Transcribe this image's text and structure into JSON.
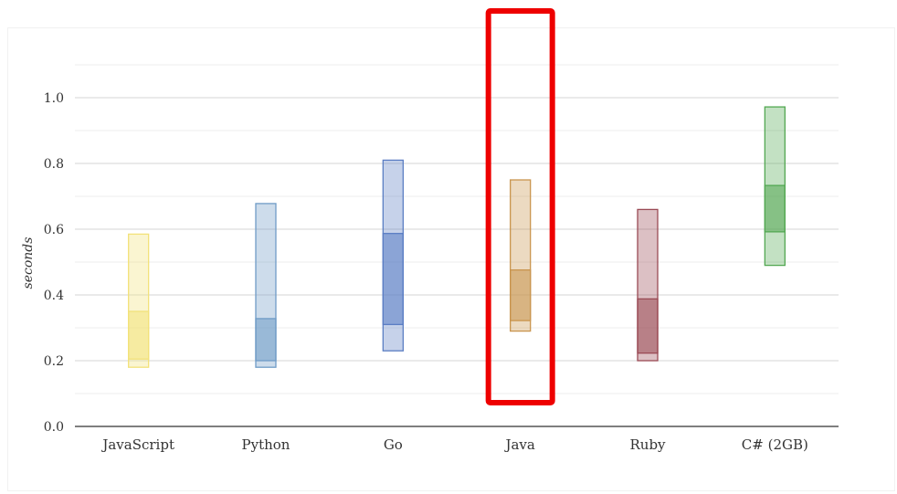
{
  "chart_data": {
    "type": "range-bar",
    "ylabel": "seconds",
    "ylim": [
      0,
      1.2
    ],
    "yticks": [
      0.0,
      0.2,
      0.4,
      0.6,
      0.8,
      1.0
    ],
    "yticks_text": [
      "0.0",
      "0.2",
      "0.4",
      "0.6",
      "0.8",
      "1.0"
    ],
    "grid": true,
    "categories": [
      "JavaScript",
      "Python",
      "Go",
      "Java",
      "Ruby",
      "C# (2GB)"
    ],
    "series": [
      {
        "category": "JavaScript",
        "min": 0.18,
        "q1": 0.205,
        "median": 0.35,
        "max": 0.585,
        "color": "#f2e27a"
      },
      {
        "category": "Python",
        "min": 0.18,
        "q1": 0.2,
        "median": 0.328,
        "max": 0.678,
        "color": "#6f9cc7"
      },
      {
        "category": "Go",
        "min": 0.23,
        "q1": 0.31,
        "median": 0.587,
        "max": 0.81,
        "color": "#5b7ec4"
      },
      {
        "category": "Java",
        "min": 0.29,
        "q1": 0.322,
        "median": 0.476,
        "max": 0.75,
        "color": "#c9954e"
      },
      {
        "category": "Ruby",
        "min": 0.2,
        "q1": 0.223,
        "median": 0.388,
        "max": 0.66,
        "color": "#9a4a55"
      },
      {
        "category": "C# (2GB)",
        "min": 0.49,
        "q1": 0.592,
        "median": 0.733,
        "max": 0.972,
        "color": "#53a852"
      }
    ],
    "highlight": {
      "category": "Java",
      "color": "#ee0000"
    }
  }
}
